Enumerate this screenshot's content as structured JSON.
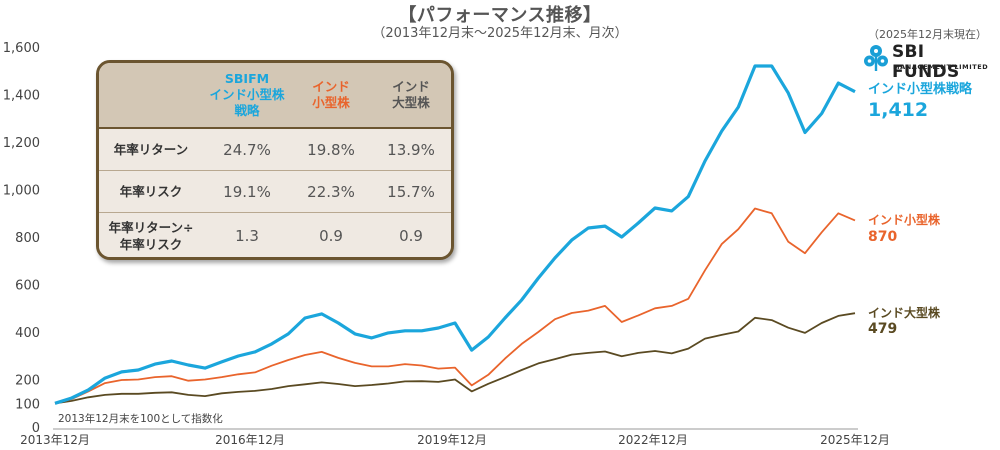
{
  "header": {
    "title": "【パフォーマンス推移】",
    "subtitle": "（2013年12月末～2025年12月末、月次）",
    "as_of": "（2025年12月末現在）"
  },
  "logo": {
    "name": "SBI FUNDS",
    "tagline": "MANAGEMENT LIMITED",
    "color": "#1a9fd6"
  },
  "note": "2013年12月末を100として指数化",
  "stats_table": {
    "columns": [
      {
        "label_lines": [
          "SBIFM",
          "インド小型株",
          "戦略"
        ],
        "color": "#1ba6dc"
      },
      {
        "label_lines": [
          "インド",
          "小型株"
        ],
        "color": "#e9642c"
      },
      {
        "label_lines": [
          "インド",
          "大型株"
        ],
        "color": "#555555"
      }
    ],
    "rows": [
      {
        "label_lines": [
          "年率リターン"
        ],
        "values": [
          "24.7%",
          "19.8%",
          "13.9%"
        ]
      },
      {
        "label_lines": [
          "年率リスク"
        ],
        "values": [
          "19.1%",
          "22.3%",
          "15.7%"
        ]
      },
      {
        "label_lines": [
          "年率リターン÷",
          "年率リスク"
        ],
        "values": [
          "1.3",
          "0.9",
          "0.9"
        ]
      }
    ]
  },
  "end_labels": [
    {
      "name": "インド小型株戦略",
      "value": "1,412",
      "color": "#1ba6dc"
    },
    {
      "name": "インド小型株",
      "value": "870",
      "color": "#e9642c"
    },
    {
      "name": "インド大型株",
      "value": "479",
      "color": "#5a4a22"
    }
  ],
  "chart_data": {
    "type": "line",
    "title": "【パフォーマンス推移】",
    "subtitle": "（2013年12月末～2025年12月末、月次）",
    "xlabel": "",
    "ylabel": "",
    "ylim": [
      0,
      1600
    ],
    "yticks": [
      0,
      100,
      200,
      400,
      600,
      800,
      1000,
      1200,
      1400,
      1600
    ],
    "ytick_labels": [
      "0",
      "100",
      "200",
      "400",
      "600",
      "800",
      "1,000",
      "1,200",
      "1,400",
      "1,600"
    ],
    "xtick_labels": [
      "2013年12月",
      "2016年12月",
      "2019年12月",
      "2022年12月",
      "2025年12月"
    ],
    "grid": false,
    "legend": "direct labels at right end of lines",
    "annotation": "2013年12月末を100として指数化",
    "x": [
      "2013-12",
      "2014-03",
      "2014-06",
      "2014-09",
      "2014-12",
      "2015-03",
      "2015-06",
      "2015-09",
      "2015-12",
      "2016-03",
      "2016-06",
      "2016-09",
      "2016-12",
      "2017-03",
      "2017-06",
      "2017-09",
      "2017-12",
      "2018-03",
      "2018-06",
      "2018-09",
      "2018-12",
      "2019-03",
      "2019-06",
      "2019-09",
      "2019-12",
      "2020-03",
      "2020-06",
      "2020-09",
      "2020-12",
      "2021-03",
      "2021-06",
      "2021-09",
      "2021-12",
      "2022-03",
      "2022-06",
      "2022-09",
      "2022-12",
      "2023-03",
      "2023-06",
      "2023-09",
      "2023-12",
      "2024-03",
      "2024-06",
      "2024-09",
      "2024-12",
      "2025-03",
      "2025-06",
      "2025-09",
      "2025-12"
    ],
    "series": [
      {
        "name": "SBIFM インド小型株戦略",
        "color": "#1ba6dc",
        "values": [
          100,
          122,
          156,
          206,
          232,
          240,
          265,
          278,
          261,
          248,
          274,
          299,
          316,
          350,
          392,
          459,
          476,
          438,
          392,
          375,
          396,
          405,
          405,
          417,
          438,
          324,
          379,
          459,
          535,
          627,
          712,
          787,
          838,
          846,
          800,
          859,
          922,
          910,
          970,
          1120,
          1246,
          1347,
          1520,
          1520,
          1406,
          1240,
          1320,
          1448,
          1412
        ]
      },
      {
        "name": "インド小型株",
        "color": "#e9642c",
        "values": [
          100,
          118,
          150,
          185,
          198,
          200,
          210,
          214,
          195,
          200,
          210,
          222,
          230,
          258,
          282,
          303,
          316,
          291,
          270,
          255,
          255,
          265,
          259,
          246,
          250,
          175,
          220,
          288,
          350,
          400,
          454,
          480,
          490,
          510,
          442,
          470,
          500,
          510,
          540,
          660,
          770,
          833,
          920,
          900,
          780,
          732,
          820,
          900,
          870
        ]
      },
      {
        "name": "インド大型株",
        "color": "#5a4a22",
        "values": [
          100,
          110,
          125,
          135,
          140,
          140,
          144,
          146,
          135,
          130,
          142,
          148,
          152,
          160,
          172,
          180,
          188,
          181,
          172,
          177,
          183,
          192,
          193,
          190,
          200,
          150,
          182,
          210,
          240,
          268,
          286,
          305,
          312,
          318,
          298,
          312,
          320,
          310,
          330,
          372,
          388,
          402,
          460,
          450,
          418,
          396,
          438,
          468,
          479
        ]
      }
    ]
  }
}
